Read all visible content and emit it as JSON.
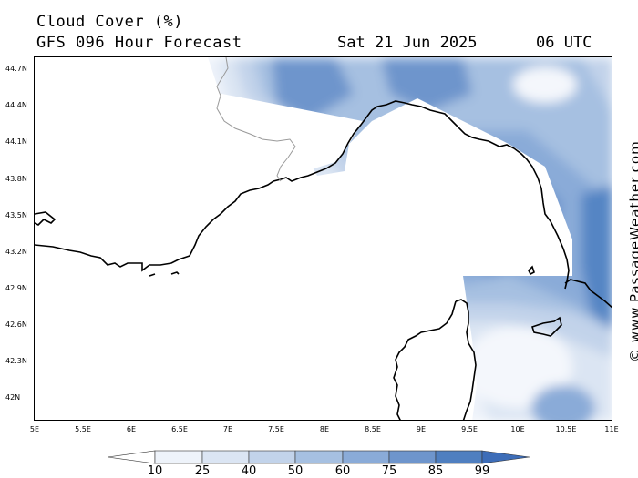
{
  "header": {
    "title": "Cloud Cover (%)",
    "subtitle": "GFS 096 Hour Forecast",
    "date": "Sat 21 Jun 2025",
    "time": "06 UTC"
  },
  "credit": "© www.PassageWeather.com",
  "map": {
    "lon_range": [
      5,
      11
    ],
    "lat_range": [
      41.8,
      44.8
    ],
    "lat_ticks": [
      "44.7N",
      "44.4N",
      "44.1N",
      "43.8N",
      "43.5N",
      "43.2N",
      "42.9N",
      "42.6N",
      "42.3N",
      "42N"
    ],
    "lon_ticks": [
      "5E",
      "5.5E",
      "6E",
      "6.5E",
      "7E",
      "7.5E",
      "8E",
      "8.5E",
      "9E",
      "9.5E",
      "10E",
      "10.5E",
      "11E"
    ]
  },
  "legend": {
    "labels": [
      "10",
      "25",
      "40",
      "50",
      "60",
      "75",
      "85",
      "99"
    ],
    "colors": [
      "#ffffff",
      "#eef3fa",
      "#dbe5f3",
      "#c2d3ea",
      "#a6c0e1",
      "#8aabd8",
      "#6e95cc",
      "#4f7fc0",
      "#3d6db8"
    ]
  }
}
